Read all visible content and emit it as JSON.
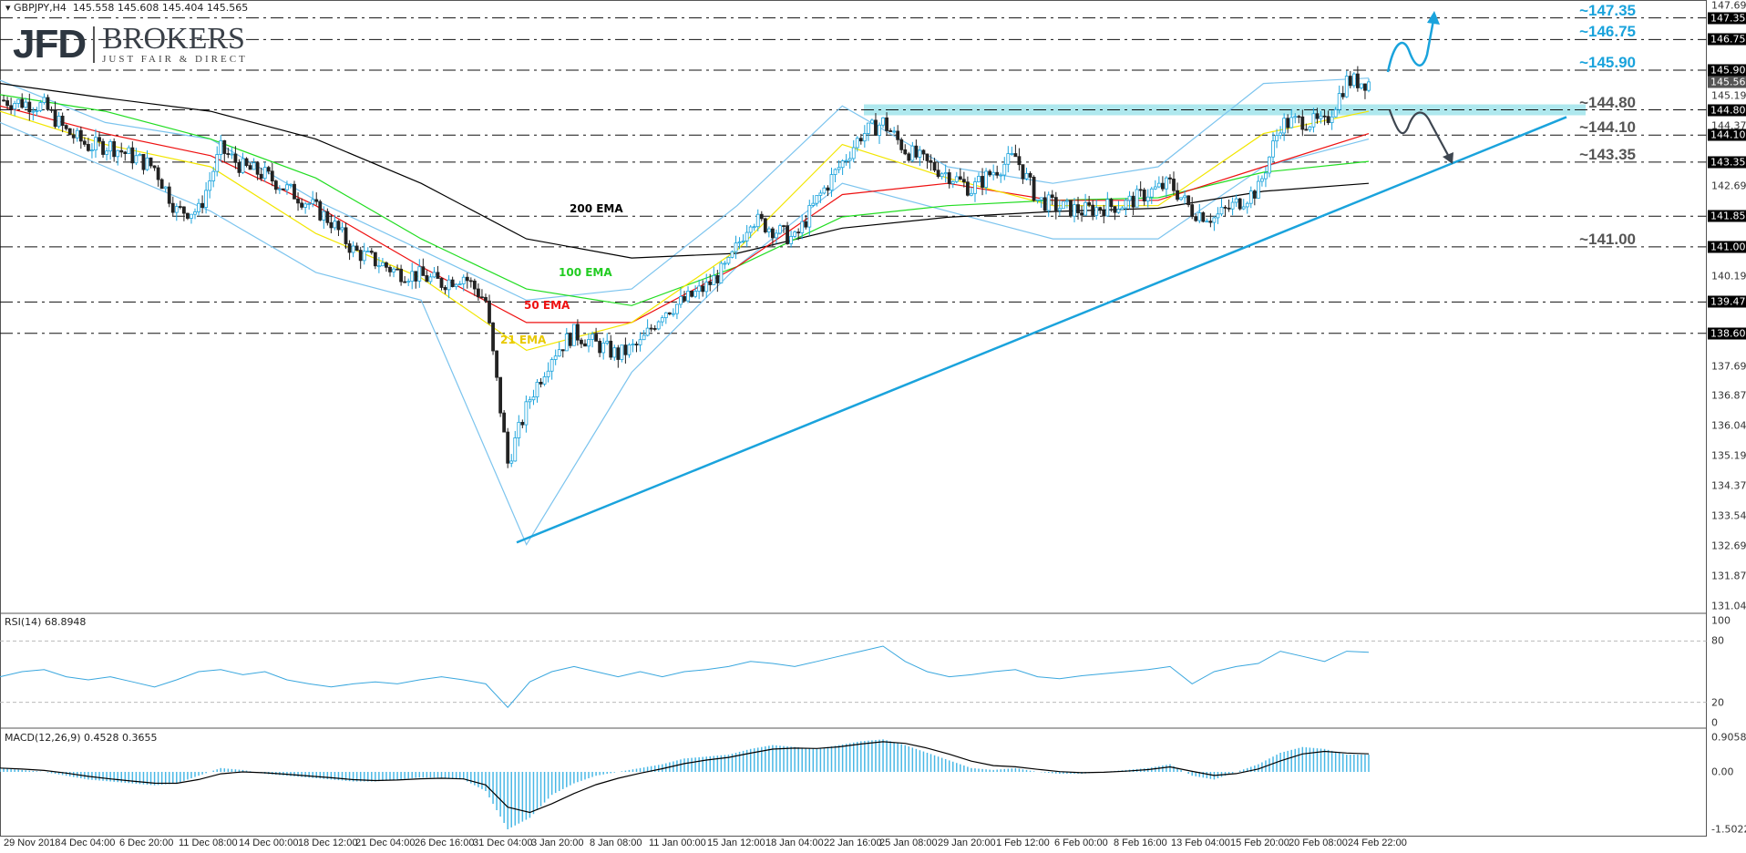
{
  "header": {
    "symbol": "GBPJPY,H4",
    "ohlc": "145.558 145.608 145.404 145.565"
  },
  "logo": {
    "name": "JFD",
    "brand": "BROKERS",
    "tagline": "JUST FAIR & DIRECT"
  },
  "colors": {
    "bull": "#1aa3dc",
    "bear": "#222222",
    "ema200": "#000000",
    "ema100": "#22dd22",
    "ema50": "#ee1111",
    "ema21": "#f2e600",
    "bands": "#7cc4ee",
    "trend": "#1aa3dc",
    "zone": "#aee8ee",
    "up_arrow": "#1aa3dc",
    "down_arrow": "#3e4650",
    "rsi": "#3aa7de",
    "macd_hist": "#49b8e6",
    "macd_signal": "#000000"
  },
  "chart_data": [
    {
      "type": "candlestick",
      "title": "GBPJPY,H4",
      "ylim": [
        131.045,
        147.695
      ],
      "y_ticks": [
        "147.695",
        "145.195",
        "144.370",
        "142.695",
        "140.195",
        "137.695",
        "136.870",
        "136.045",
        "135.195",
        "134.370",
        "133.545",
        "132.695",
        "131.870",
        "131.045"
      ],
      "x_ticks": [
        "29 Nov 2018",
        "4 Dec 04:00",
        "6 Dec 20:00",
        "11 Dec 08:00",
        "14 Dec 00:00",
        "18 Dec 12:00",
        "21 Dec 04:00",
        "26 Dec 16:00",
        "31 Dec 04:00",
        "3 Jan 20:00",
        "8 Jan 08:00",
        "11 Jan 00:00",
        "15 Jan 12:00",
        "18 Jan 04:00",
        "22 Jan 16:00",
        "25 Jan 08:00",
        "29 Jan 20:00",
        "1 Feb 12:00",
        "6 Feb 00:00",
        "8 Feb 16:00",
        "13 Feb 04:00",
        "15 Feb 20:00",
        "20 Feb 08:00",
        "24 Feb 22:00"
      ],
      "closes": [
        145.07,
        145.0,
        144.9,
        144.2,
        143.8,
        143.8,
        143.5,
        143.2,
        142.0,
        142.0,
        143.7,
        143.2,
        143.0,
        142.6,
        142.2,
        141.7,
        140.9,
        140.6,
        140.3,
        140.2,
        140.0,
        140.2,
        139.5,
        135.0,
        136.8,
        138.0,
        138.6,
        138.3,
        138.0,
        138.3,
        139.2,
        139.5,
        139.9,
        140.5,
        141.8,
        141.5,
        141.2,
        142.3,
        143.2,
        144.1,
        144.45,
        143.7,
        143.3,
        143.0,
        142.6,
        143.1,
        143.5,
        142.3,
        142.1,
        142.0,
        142.1,
        142.2,
        142.5,
        142.75,
        142.0,
        141.8,
        142.2,
        142.6,
        144.4,
        144.5,
        144.4,
        145.6,
        145.565
      ],
      "series": [
        {
          "name": "200 EMA",
          "values": [
            145.53,
            145.13,
            144.76,
            143.99,
            142.76,
            141.22,
            140.69,
            140.82,
            141.52,
            141.82,
            141.98,
            142.07,
            142.54,
            142.76
          ]
        },
        {
          "name": "100 EMA",
          "values": [
            145.22,
            144.76,
            143.99,
            142.91,
            141.22,
            139.83,
            139.37,
            140.45,
            141.83,
            142.14,
            142.29,
            142.36,
            143.07,
            143.37
          ]
        },
        {
          "name": "50 EMA",
          "values": [
            144.91,
            144.14,
            143.53,
            142.14,
            140.45,
            138.9,
            138.9,
            140.45,
            142.45,
            142.76,
            142.29,
            142.29,
            143.22,
            144.14
          ]
        },
        {
          "name": "21 EMA",
          "values": [
            144.76,
            143.84,
            143.22,
            141.37,
            140.14,
            138.13,
            138.9,
            140.91,
            143.84,
            142.91,
            142.14,
            142.14,
            144.14,
            144.76
          ]
        }
      ],
      "bollinger_upper": [
        145.62,
        144.45,
        143.99,
        142.29,
        140.91,
        139.52,
        139.83,
        142.14,
        144.91,
        143.22,
        142.76,
        143.22,
        145.53,
        145.68
      ],
      "bollinger_lower": [
        144.45,
        143.22,
        141.99,
        140.29,
        139.52,
        132.74,
        137.52,
        140.45,
        142.76,
        141.99,
        141.22,
        141.22,
        143.22,
        143.99
      ],
      "levels": [
        {
          "price": 147.35,
          "box": "147.350",
          "note": "~147.35",
          "tone": "cyan"
        },
        {
          "price": 146.75,
          "box": "146.750",
          "note": "~146.75",
          "tone": "cyan"
        },
        {
          "price": 145.9,
          "box": "145.900",
          "note": "~145.90",
          "tone": "cyan"
        },
        {
          "price": 144.8,
          "box": "144.800",
          "note": "~144.80",
          "tone": "gray"
        },
        {
          "price": 144.1,
          "box": "144.100",
          "note": "~144.10",
          "tone": "gray"
        },
        {
          "price": 143.35,
          "box": "143.350",
          "note": "~143.35",
          "tone": "gray"
        },
        {
          "price": 141.85,
          "box": "141.850",
          "note": "",
          "tone": "gray"
        },
        {
          "price": 141.0,
          "box": "141.000",
          "note": "~141.00",
          "tone": "gray"
        },
        {
          "price": 139.47,
          "box": "139.470",
          "note": "",
          "tone": "gray"
        },
        {
          "price": 138.6,
          "box": "138.600",
          "note": "",
          "tone": "gray"
        }
      ],
      "current_price": "145.565",
      "trendline": {
        "start": 132.8,
        "end": 144.6
      },
      "resistance_zone": 144.8
    },
    {
      "type": "line",
      "title": "RSI(14) 68.8948",
      "ylim": [
        0,
        100
      ],
      "y_ticks": [
        "100",
        "80",
        "20",
        "0"
      ],
      "values": [
        45,
        50,
        52,
        45,
        42,
        45,
        40,
        35,
        42,
        50,
        52,
        47,
        50,
        42,
        38,
        35,
        38,
        40,
        38,
        42,
        45,
        42,
        38,
        15,
        40,
        50,
        55,
        50,
        45,
        50,
        45,
        50,
        52,
        55,
        60,
        58,
        55,
        60,
        65,
        70,
        75,
        60,
        50,
        45,
        47,
        50,
        52,
        45,
        43,
        46,
        48,
        50,
        52,
        55,
        38,
        50,
        55,
        58,
        70,
        65,
        60,
        70,
        68.9
      ]
    },
    {
      "type": "bar",
      "title": "MACD(12,26,9) 0.4528 0.3655",
      "ylim": [
        -1.5022,
        0.9058
      ],
      "y_ticks": [
        "0.9058",
        "0.00",
        "-1.5022"
      ],
      "values": [
        0.1,
        0.05,
        0,
        -0.1,
        -0.2,
        -0.25,
        -0.3,
        -0.35,
        -0.3,
        -0.1,
        0.1,
        0.05,
        -0.05,
        -0.1,
        -0.15,
        -0.2,
        -0.25,
        -0.25,
        -0.2,
        -0.15,
        -0.15,
        -0.2,
        -0.5,
        -1.5,
        -1.2,
        -0.6,
        -0.3,
        -0.1,
        0,
        0.1,
        0.2,
        0.35,
        0.4,
        0.45,
        0.6,
        0.7,
        0.65,
        0.6,
        0.7,
        0.8,
        0.85,
        0.7,
        0.5,
        0.3,
        0.1,
        0.05,
        0.1,
        0,
        -0.05,
        -0.05,
        0,
        0.05,
        0.1,
        0.2,
        -0.1,
        -0.2,
        0,
        0.2,
        0.5,
        0.65,
        0.6,
        0.45,
        0.4528
      ]
    }
  ]
}
